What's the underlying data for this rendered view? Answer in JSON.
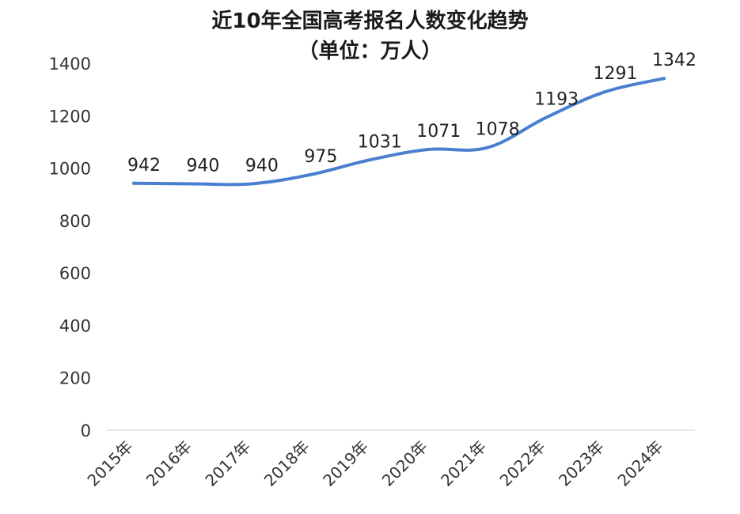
{
  "chart_data": {
    "type": "line",
    "title": "近10年全国高考报名人数变化趋势",
    "subtitle": "（单位：万人）",
    "categories": [
      "2015年",
      "2016年",
      "2017年",
      "2018年",
      "2019年",
      "2020年",
      "2021年",
      "2022年",
      "2023年",
      "2024年"
    ],
    "series": [
      {
        "values": [
          942,
          940,
          940,
          975,
          1031,
          1071,
          1078,
          1193,
          1291,
          1342
        ],
        "color": "#4a7fd0"
      }
    ],
    "ylim": [
      0,
      1400
    ],
    "yticks": [
      "0",
      "200",
      "400",
      "600",
      "800",
      "1000",
      "1200",
      "1400"
    ],
    "xlabel": "",
    "ylabel": "",
    "grid": false,
    "data_labels": true
  }
}
